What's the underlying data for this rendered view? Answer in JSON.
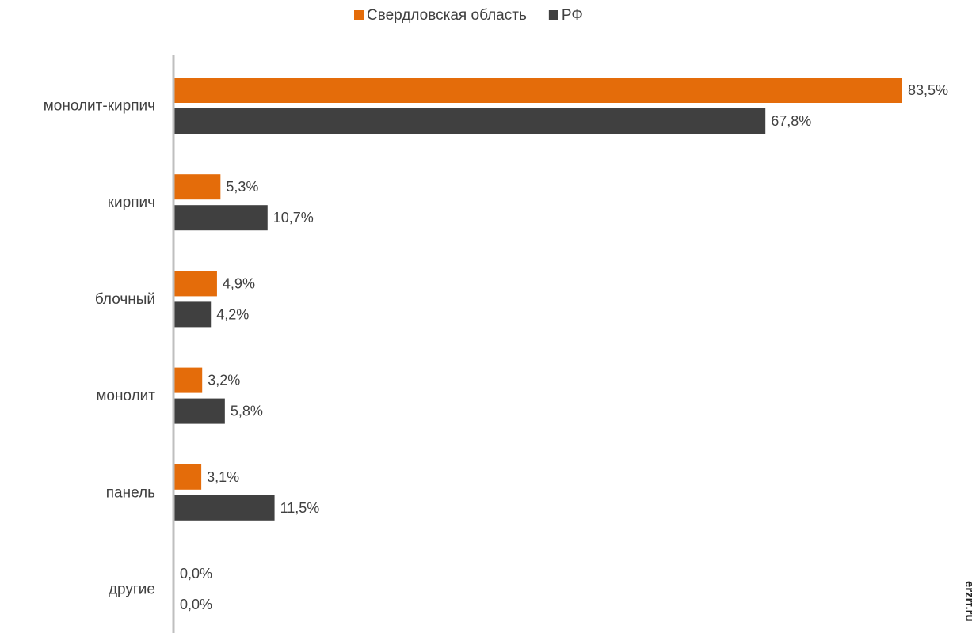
{
  "chart_data": {
    "type": "bar",
    "orientation": "horizontal",
    "categories": [
      "монолит-кирпич",
      "кирпич",
      "блочный",
      "монолит",
      "панель",
      "другие"
    ],
    "series": [
      {
        "name": "Свердловская область",
        "color": "#E46C0A",
        "values": [
          83.5,
          5.3,
          4.9,
          3.2,
          3.1,
          0.0
        ],
        "labels": [
          "83,5%",
          "5,3%",
          "4,9%",
          "3,2%",
          "3,1%",
          "0,0%"
        ]
      },
      {
        "name": "РФ",
        "color": "#404040",
        "values": [
          67.8,
          10.7,
          4.2,
          5.8,
          11.5,
          0.0
        ],
        "labels": [
          "67,8%",
          "10,7%",
          "4,2%",
          "5,8%",
          "11,5%",
          "0,0%"
        ]
      }
    ],
    "xlim": [
      0,
      83.5
    ],
    "grid": false,
    "legend": "top-center"
  },
  "watermark": "erzrf.ru"
}
